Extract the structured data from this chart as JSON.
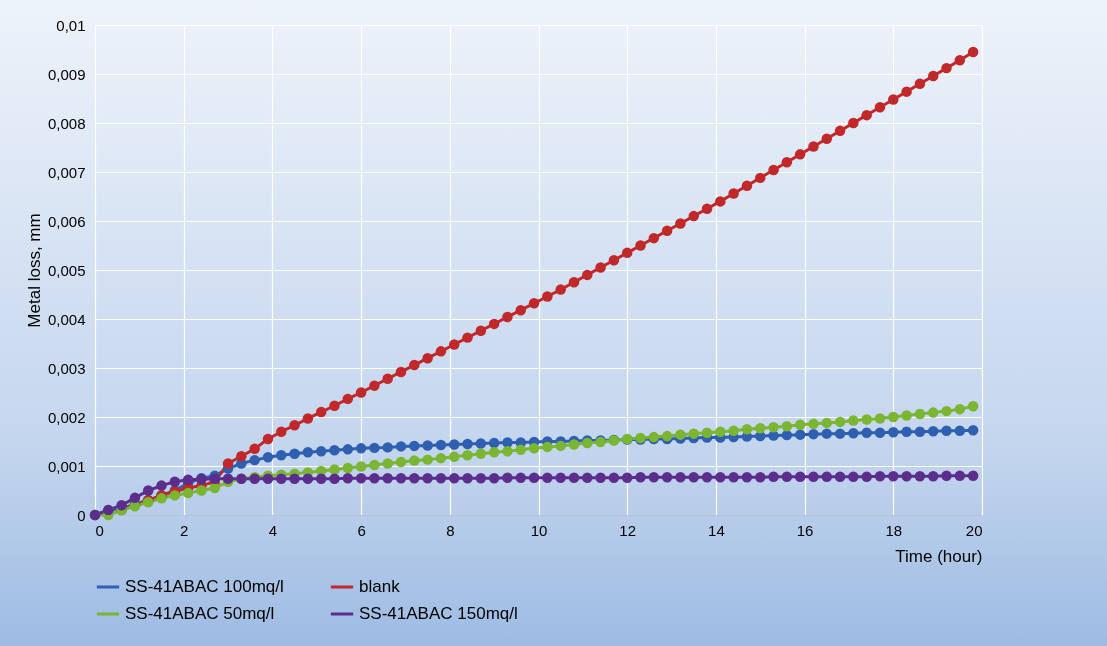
{
  "chart_data": {
    "type": "line",
    "xlabel": "Time (hour)",
    "ylabel": "Metal loss, mm",
    "marker": "circle",
    "grid": true,
    "legend": "bottom",
    "x": [
      0,
      0.3,
      0.6,
      0.9,
      1.2,
      1.5,
      1.8,
      2.1,
      2.4,
      2.7,
      3.0,
      3.3,
      3.6,
      3.9,
      4.2,
      4.5,
      4.8,
      5.1,
      5.4,
      5.7,
      6.0,
      6.3,
      6.6,
      6.9,
      7.2,
      7.5,
      7.8,
      8.1,
      8.4,
      8.7,
      9.0,
      9.3,
      9.6,
      9.9,
      10.2,
      10.5,
      10.8,
      11.1,
      11.4,
      11.7,
      12.0,
      12.3,
      12.6,
      12.9,
      13.2,
      13.5,
      13.8,
      14.1,
      14.4,
      14.7,
      15.0,
      15.3,
      15.6,
      15.9,
      16.2,
      16.5,
      16.8,
      17.1,
      17.4,
      17.7,
      18.0,
      18.3,
      18.6,
      18.9,
      19.2,
      19.5,
      19.8
    ],
    "xlim": [
      0,
      20
    ],
    "xticks": [
      0,
      2,
      4,
      6,
      8,
      10,
      12,
      14,
      16,
      18,
      20
    ],
    "ylim": [
      0,
      0.01
    ],
    "yticks": [
      0,
      {
        "value": 0.001,
        "label": "0,001"
      },
      {
        "value": 0.002,
        "label": "0,002"
      },
      {
        "value": 0.003,
        "label": "0,003"
      },
      {
        "value": 0.004,
        "label": "0,004"
      },
      {
        "value": 0.005,
        "label": "0,005"
      },
      {
        "value": 0.006,
        "label": "0,006"
      },
      {
        "value": 0.007,
        "label": "0,007"
      },
      {
        "value": 0.008,
        "label": "0,008"
      },
      {
        "value": 0.009,
        "label": "0,009"
      },
      {
        "value": 0.01,
        "label": "0,01"
      }
    ],
    "series": [
      {
        "name": "SS-41ABAC 100mq/l",
        "color": "#2f5fb0",
        "values": [
          0,
          0.0001,
          0.00013,
          0.00022,
          0.0003,
          0.0004,
          0.0005,
          0.00065,
          0.00075,
          0.0008,
          0.00095,
          0.00105,
          0.00112,
          0.00118,
          0.00122,
          0.00125,
          0.00128,
          0.0013,
          0.00132,
          0.00134,
          0.00136,
          0.00137,
          0.00138,
          0.0014,
          0.00141,
          0.00142,
          0.00143,
          0.00144,
          0.00145,
          0.00146,
          0.00147,
          0.00148,
          0.00148,
          0.00149,
          0.0015,
          0.0015,
          0.00151,
          0.00152,
          0.00152,
          0.00153,
          0.00154,
          0.00154,
          0.00155,
          0.00155,
          0.00156,
          0.00157,
          0.00158,
          0.00158,
          0.00159,
          0.0016,
          0.00161,
          0.00162,
          0.00163,
          0.00164,
          0.00165,
          0.00166,
          0.00166,
          0.00167,
          0.00168,
          0.00168,
          0.00169,
          0.0017,
          0.0017,
          0.00171,
          0.00172,
          0.00172,
          0.00173
        ]
      },
      {
        "name": "blank",
        "color": "#c0282a",
        "values": [
          null,
          null,
          0.0001,
          0.0002,
          0.0003,
          0.0004,
          0.00048,
          0.00055,
          0.0006,
          0.00068,
          0.00105,
          0.0012,
          0.00135,
          0.00155,
          0.0017,
          0.00183,
          0.00197,
          0.0021,
          0.00223,
          0.00237,
          0.0025,
          0.00264,
          0.00278,
          0.00292,
          0.00306,
          0.0032,
          0.00334,
          0.00348,
          0.00362,
          0.00376,
          0.0039,
          0.00404,
          0.00418,
          0.00432,
          0.00446,
          0.0046,
          0.00475,
          0.0049,
          0.00505,
          0.0052,
          0.00535,
          0.0055,
          0.00565,
          0.0058,
          0.00595,
          0.0061,
          0.00625,
          0.0064,
          0.00656,
          0.00672,
          0.00688,
          0.00704,
          0.0072,
          0.00736,
          0.00752,
          0.00768,
          0.00784,
          0.008,
          0.00816,
          0.00832,
          0.00848,
          0.00864,
          0.0088,
          0.00896,
          0.00912,
          0.00928,
          0.00945
        ]
      },
      {
        "name": "SS-41ABAC 50mq/l",
        "color": "#7ab632",
        "values": [
          0,
          0,
          0.0001,
          0.00018,
          0.00026,
          0.00034,
          0.0004,
          0.00045,
          0.0005,
          0.00055,
          0.00068,
          0.00074,
          0.00077,
          0.0008,
          0.00082,
          0.00084,
          0.00087,
          0.0009,
          0.00093,
          0.00096,
          0.00099,
          0.00102,
          0.00105,
          0.00108,
          0.00111,
          0.00113,
          0.00116,
          0.00119,
          0.00122,
          0.00125,
          0.00128,
          0.0013,
          0.00133,
          0.00136,
          0.00139,
          0.00141,
          0.00144,
          0.00147,
          0.00149,
          0.00152,
          0.00155,
          0.00157,
          0.00159,
          0.00161,
          0.00164,
          0.00166,
          0.00168,
          0.0017,
          0.00172,
          0.00175,
          0.00177,
          0.00179,
          0.00181,
          0.00184,
          0.00186,
          0.00188,
          0.0019,
          0.00193,
          0.00195,
          0.00197,
          0.002,
          0.00203,
          0.00206,
          0.00209,
          0.00212,
          0.00216,
          0.00222
        ]
      },
      {
        "name": "SS-41ABAC 150mq/l",
        "color": "#5c2d8c",
        "values": [
          0,
          0.0001,
          0.0002,
          0.00035,
          0.0005,
          0.0006,
          0.00068,
          0.00072,
          0.00073,
          0.00074,
          0.00074,
          0.00074,
          0.00074,
          0.00074,
          0.00074,
          0.00074,
          0.00074,
          0.00074,
          0.00074,
          0.00075,
          0.00075,
          0.00075,
          0.00075,
          0.00075,
          0.00075,
          0.00075,
          0.00075,
          0.00075,
          0.00075,
          0.00075,
          0.00075,
          0.00076,
          0.00076,
          0.00076,
          0.00076,
          0.00076,
          0.00076,
          0.00076,
          0.00076,
          0.00076,
          0.00076,
          0.00077,
          0.00077,
          0.00077,
          0.00077,
          0.00077,
          0.00077,
          0.00077,
          0.00077,
          0.00077,
          0.00077,
          0.00078,
          0.00078,
          0.00078,
          0.00078,
          0.00078,
          0.00078,
          0.00078,
          0.00078,
          0.00079,
          0.00079,
          0.00079,
          0.00079,
          0.00079,
          0.0008,
          0.0008,
          0.0008
        ]
      }
    ]
  }
}
